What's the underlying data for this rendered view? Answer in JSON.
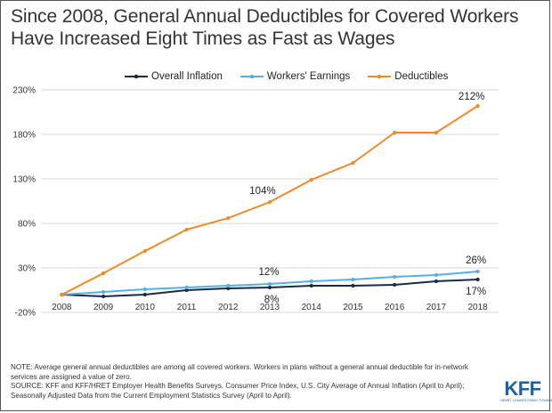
{
  "title_line1": "Since 2008, General Annual Deductibles for Covered Workers",
  "title_line2": "Have Increased Eight Times as Fast as Wages",
  "chart_data": {
    "type": "line",
    "categories": [
      "2008",
      "2009",
      "2010",
      "2011",
      "2012",
      "2013",
      "2014",
      "2015",
      "2016",
      "2017",
      "2018"
    ],
    "ylim": [
      -20,
      230
    ],
    "yticks": [
      -20,
      30,
      80,
      130,
      180,
      230
    ],
    "ytick_labels": [
      "-20%",
      "30%",
      "80%",
      "130%",
      "180%",
      "230%"
    ],
    "grid": "horizontal",
    "legend_position": "top",
    "series": [
      {
        "name": "Overall Inflation",
        "color": "#1a2b44",
        "values": [
          0,
          -2,
          0,
          5,
          7,
          8,
          10,
          10,
          11,
          15,
          17
        ]
      },
      {
        "name": "Workers' Earnings",
        "color": "#56b0e8",
        "values": [
          0,
          3,
          6,
          8,
          10,
          12,
          15,
          17,
          20,
          22,
          26
        ]
      },
      {
        "name": "Deductibles",
        "color": "#f08a24",
        "values": [
          0,
          24,
          49,
          73,
          86,
          104,
          129,
          148,
          182,
          182,
          212
        ]
      }
    ],
    "annotations": [
      {
        "series": 2,
        "index": 5,
        "text": "104%"
      },
      {
        "series": 2,
        "index": 10,
        "text": "212%"
      },
      {
        "series": 1,
        "index": 5,
        "text": "12%"
      },
      {
        "series": 0,
        "index": 5,
        "text": "8%"
      },
      {
        "series": 1,
        "index": 10,
        "text": "26%"
      },
      {
        "series": 0,
        "index": 10,
        "text": "17%"
      }
    ]
  },
  "note_text": "NOTE: Average general annual deductibles are among all covered workers. Workers in plans without a general annual deductible for in-network services are assigned a value of zero.",
  "source_text": "SOURCE: KFF and KFF/HRET Employer Health Benefits Surveys. Consumer Price Index, U.S. City Average of Annual Inflation (April to April); Seasonally Adjusted Data from the Current Employment Statistics Survey (April to April).",
  "logo_text": "KFF",
  "logo_subtext": "HENRY J KAISER FAMILY FOUNDATION"
}
